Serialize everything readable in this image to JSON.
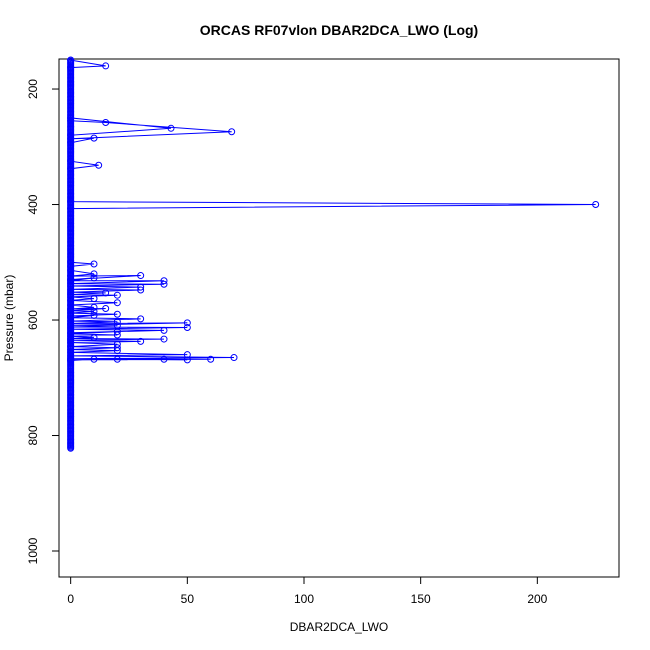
{
  "chart_data": {
    "type": "line",
    "title": "ORCAS RF07vlon DBAR2DCA_LWO (Log)",
    "xlabel": "DBAR2DCA_LWO",
    "ylabel": "Pressure (mbar)",
    "xlim": [
      -5,
      235
    ],
    "ylim": [
      1045,
      148
    ],
    "y_reversed": true,
    "x_ticks": [
      0,
      50,
      100,
      150,
      200
    ],
    "y_ticks": [
      200,
      400,
      600,
      800,
      1000
    ],
    "color": "#0000ff",
    "marker": "open-circle",
    "baseline": {
      "x": 0,
      "p_min": 150,
      "p_max": 822
    },
    "series": [
      {
        "points": [
          [
            0,
            150
          ],
          [
            15,
            160
          ],
          [
            0,
            163
          ],
          [
            0,
            250
          ],
          [
            43,
            268
          ],
          [
            0,
            280
          ],
          [
            0,
            255
          ],
          [
            15,
            258
          ],
          [
            69,
            274
          ],
          [
            0,
            286
          ],
          [
            10,
            285
          ],
          [
            0,
            293
          ],
          [
            0,
            325
          ],
          [
            12,
            332
          ],
          [
            0,
            338
          ],
          [
            0,
            395
          ],
          [
            225,
            400
          ],
          [
            0,
            407
          ],
          [
            0,
            500
          ],
          [
            10,
            503
          ],
          [
            0,
            507
          ],
          [
            0,
            514
          ],
          [
            10,
            520
          ],
          [
            0,
            524
          ],
          [
            30,
            523
          ],
          [
            0,
            530
          ],
          [
            10,
            527
          ],
          [
            0,
            532
          ],
          [
            40,
            532
          ],
          [
            0,
            537
          ],
          [
            40,
            538
          ],
          [
            0,
            541
          ],
          [
            30,
            543
          ],
          [
            0,
            547
          ],
          [
            30,
            548
          ],
          [
            0,
            552
          ],
          [
            15,
            553
          ],
          [
            0,
            556
          ],
          [
            20,
            557
          ],
          [
            0,
            560
          ],
          [
            10,
            563
          ],
          [
            0,
            566
          ],
          [
            20,
            570
          ],
          [
            0,
            574
          ],
          [
            10,
            578
          ],
          [
            0,
            581
          ],
          [
            15,
            580
          ],
          [
            0,
            584
          ],
          [
            10,
            585
          ],
          [
            0,
            588
          ],
          [
            20,
            590
          ],
          [
            0,
            593
          ],
          [
            10,
            592
          ],
          [
            0,
            596
          ],
          [
            30,
            598
          ],
          [
            0,
            602
          ],
          [
            20,
            603
          ],
          [
            0,
            606
          ],
          [
            50,
            605
          ],
          [
            0,
            609
          ],
          [
            20,
            610
          ],
          [
            0,
            612
          ],
          [
            50,
            613
          ],
          [
            0,
            616
          ],
          [
            40,
            618
          ],
          [
            0,
            622
          ],
          [
            20,
            620
          ],
          [
            0,
            624
          ],
          [
            20,
            626
          ],
          [
            0,
            628
          ],
          [
            10,
            630
          ],
          [
            0,
            632
          ],
          [
            40,
            633
          ],
          [
            0,
            635
          ],
          [
            30,
            637
          ],
          [
            0,
            639
          ],
          [
            20,
            642
          ],
          [
            0,
            646
          ],
          [
            20,
            648
          ],
          [
            0,
            651
          ],
          [
            20,
            653
          ],
          [
            0,
            656
          ],
          [
            50,
            660
          ],
          [
            0,
            662
          ],
          [
            70,
            665
          ],
          [
            0,
            667
          ],
          [
            60,
            668
          ],
          [
            0,
            669
          ],
          [
            40,
            668
          ],
          [
            50,
            669
          ],
          [
            20,
            668
          ],
          [
            10,
            668
          ],
          [
            0,
            670
          ]
        ]
      }
    ]
  }
}
